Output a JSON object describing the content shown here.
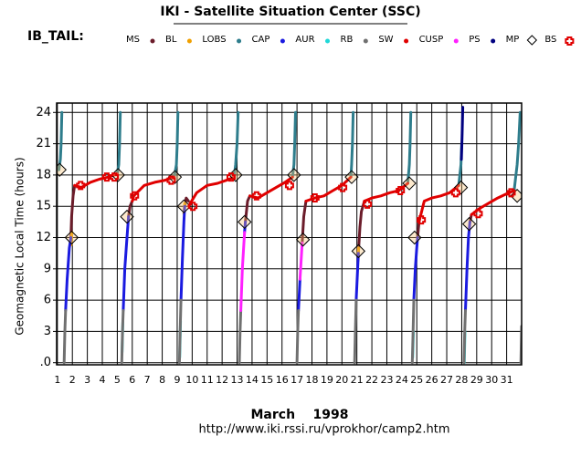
{
  "chart_data": {
    "type": "orbit",
    "title": "IKI - Satellite Situation Center (SSC)",
    "subtitle": "IB_TAIL:",
    "ylabel": "Geomagnetic  Local Time  (hours)",
    "xlabel": "March    1998",
    "url": "http://www.iki.rssi.ru/vprokhor/camp2.htm",
    "xlim": [
      0.95,
      32
    ],
    "ylim": [
      -0.2,
      24.9
    ],
    "xticks": [
      1,
      2,
      3,
      4,
      5,
      6,
      7,
      8,
      9,
      10,
      11,
      12,
      13,
      14,
      15,
      16,
      17,
      18,
      19,
      20,
      21,
      22,
      23,
      24,
      25,
      26,
      27,
      28,
      29,
      30,
      31
    ],
    "yticks": [
      {
        "value": 0,
        "label": ".0"
      },
      3,
      6,
      9,
      12,
      15,
      18,
      21,
      24
    ],
    "grid": true,
    "series": [
      {
        "name": "MS",
        "color": "#6b1c2a",
        "marker": "dot",
        "x": [
          1.9,
          1.95,
          2.05,
          2.15,
          null,
          5.75,
          5.85,
          6.0,
          null,
          9.5,
          9.6,
          9.75,
          null,
          13.55,
          13.7,
          13.85,
          null,
          17.35,
          17.45,
          17.6,
          null,
          21.1,
          21.2,
          21.3,
          21.5,
          null,
          25.05,
          25.15,
          null,
          28.55,
          28.65
        ],
        "y": [
          12,
          14,
          16,
          17,
          null,
          14,
          15,
          15.5,
          null,
          15,
          15.8,
          15.5,
          null,
          13.5,
          15.5,
          16,
          null,
          11.5,
          14,
          15.5,
          null,
          10.5,
          13,
          14.5,
          15.5,
          null,
          12,
          13.5,
          null,
          13.5,
          14.2
        ]
      },
      {
        "name": "BL",
        "color": "#f0a000",
        "marker": "dot",
        "x": [
          1.92,
          1.97,
          null,
          9.45,
          9.5,
          null,
          21.08,
          21.12
        ],
        "y": [
          11.3,
          12.5,
          null,
          14.3,
          15.3,
          null,
          9.8,
          11
        ]
      },
      {
        "name": "LOBS",
        "color": "#2e7d8c",
        "marker": "dot",
        "x": [
          1.1,
          1.2,
          1.25,
          1.3,
          null,
          5.0,
          5.1,
          5.15,
          5.2,
          null,
          8.8,
          8.95,
          9.0,
          9.05,
          null,
          12.8,
          12.9,
          13.0,
          13.07,
          null,
          16.7,
          16.8,
          16.85,
          16.9,
          null,
          20.6,
          20.65,
          20.7,
          20.75,
          null,
          24.4,
          24.5,
          24.55,
          24.6,
          null,
          27.8,
          27.95,
          28.0,
          null,
          31.5,
          31.7,
          31.8,
          31.9
        ],
        "y": [
          18.5,
          19.5,
          21,
          24,
          null,
          18.1,
          19,
          21,
          24,
          null,
          17.8,
          19,
          21,
          24,
          null,
          17.8,
          19,
          21,
          24,
          null,
          17.8,
          19,
          21,
          24,
          null,
          17.8,
          19,
          21,
          24,
          null,
          17.2,
          19,
          21,
          24,
          null,
          17,
          19,
          21,
          null,
          16.5,
          19,
          21,
          24
        ]
      },
      {
        "name": "CAP",
        "color": "#1a1ae0",
        "marker": "dot",
        "x": [
          1.55,
          1.65,
          1.8,
          1.9,
          null,
          5.4,
          5.5,
          5.65,
          5.75,
          null,
          9.25,
          9.35,
          9.45,
          9.5,
          null,
          13.5,
          13.55,
          null,
          17.1,
          17.2,
          null,
          20.95,
          21.05,
          21.1,
          null,
          24.8,
          24.9,
          25.0,
          25.05,
          null,
          28.25,
          28.35,
          28.45,
          28.55
        ],
        "y": [
          5,
          8,
          11,
          12,
          null,
          5,
          9,
          12,
          14,
          null,
          6,
          10,
          13.5,
          15,
          null,
          12.5,
          13.5,
          null,
          5,
          8,
          null,
          6,
          9,
          10.5,
          null,
          6,
          9,
          11,
          12,
          null,
          5,
          9,
          12,
          13.5
        ]
      },
      {
        "name": "AUR",
        "color": "#20d8d8",
        "marker": "dot",
        "x": [
          5.32,
          5.37,
          null,
          9.17,
          9.22,
          null,
          24.72,
          24.77,
          null,
          28.17,
          28.22
        ],
        "y": [
          1,
          4,
          null,
          0.5,
          4,
          null,
          0.5,
          3,
          null,
          0,
          3
        ]
      },
      {
        "name": "RB",
        "color": "#707070",
        "marker": "dot",
        "x": [
          1.45,
          1.5,
          1.55,
          null,
          5.3,
          5.35,
          5.4,
          null,
          9.15,
          9.2,
          9.25,
          null,
          13.15,
          13.2,
          13.25,
          null,
          17.0,
          17.05,
          17.1,
          null,
          20.85,
          20.9,
          20.95,
          null,
          24.7,
          24.75,
          24.8,
          null,
          28.15,
          28.2,
          28.25,
          null,
          31.95,
          32
        ],
        "y": [
          0,
          3,
          5,
          null,
          0,
          3,
          5,
          null,
          0,
          3,
          6,
          null,
          0,
          3,
          5,
          null,
          0,
          3,
          5,
          null,
          0,
          3,
          6,
          null,
          0,
          3,
          6,
          null,
          0,
          3,
          5,
          null,
          0,
          3.5
        ]
      },
      {
        "name": "SW",
        "color": "#e00000",
        "marker": "dot",
        "x": [
          2.15,
          2.6,
          3.2,
          3.8,
          4.4,
          5.0,
          null,
          6.0,
          6.1,
          6.8,
          7.5,
          8.2,
          8.8,
          null,
          9.75,
          10.3,
          11,
          11.7,
          12.3,
          12.8,
          null,
          13.85,
          14.4,
          15,
          15.6,
          16.2,
          16.7,
          null,
          17.6,
          18.2,
          18.8,
          19.4,
          20,
          20.6,
          null,
          21.5,
          22,
          22.6,
          23.2,
          23.8,
          24.4,
          null,
          25.15,
          25.5,
          26,
          26.6,
          27.2,
          27.8,
          null,
          28.65,
          29.2,
          29.8,
          30.4,
          31.0,
          31.5
        ],
        "y": [
          17,
          16.8,
          17.3,
          17.6,
          17.8,
          18.1,
          null,
          15.5,
          16,
          17,
          17.3,
          17.5,
          17.8,
          null,
          15,
          16.3,
          17,
          17.2,
          17.5,
          17.8,
          null,
          16,
          15.8,
          16.3,
          16.8,
          17.3,
          17.8,
          null,
          15.5,
          15.8,
          16,
          16.5,
          17,
          17.8,
          null,
          15.5,
          15.8,
          16,
          16.3,
          16.5,
          17.2,
          null,
          13.5,
          15.5,
          15.8,
          16,
          16.3,
          17,
          null,
          14.2,
          14.8,
          15.3,
          15.8,
          16.2,
          16.5
        ]
      },
      {
        "name": "CUSP",
        "color": "#ff20ff",
        "marker": "dot",
        "x": [
          13.25,
          13.35,
          13.5,
          null,
          17.2,
          17.35
        ],
        "y": [
          5,
          9,
          12.5,
          null,
          8,
          11.5
        ]
      },
      {
        "name": "PS",
        "color": "#000080",
        "marker": "dot",
        "x": [
          27.98,
          28.03,
          28.07
        ],
        "y": [
          19.5,
          22,
          24.5
        ]
      },
      {
        "name": "MP",
        "color": "#000000",
        "marker": "diamond",
        "x": [
          1.15,
          1.95,
          5.05,
          5.65,
          8.85,
          9.45,
          12.9,
          13.5,
          16.8,
          17.4,
          20.65,
          21.1,
          24.5,
          24.85,
          27.95,
          28.5,
          31.7
        ],
        "y": [
          18.5,
          12,
          18,
          14,
          17.8,
          15,
          18,
          13.5,
          18,
          11.8,
          17.8,
          10.7,
          17.2,
          12,
          16.8,
          13.3,
          16
        ]
      },
      {
        "name": "BS",
        "color": "#e00000",
        "marker": "cross",
        "x": [
          2.55,
          4.3,
          4.8,
          6.15,
          8.6,
          10.05,
          12.6,
          14.3,
          16.5,
          18.2,
          20.05,
          21.7,
          23.9,
          25.3,
          27.6,
          29.1,
          31.3
        ],
        "y": [
          17,
          17.8,
          17.8,
          16,
          17.5,
          15,
          17.8,
          16,
          17,
          15.8,
          16.8,
          15.2,
          16.5,
          13.7,
          16.3,
          14.3,
          16.3
        ]
      }
    ]
  }
}
